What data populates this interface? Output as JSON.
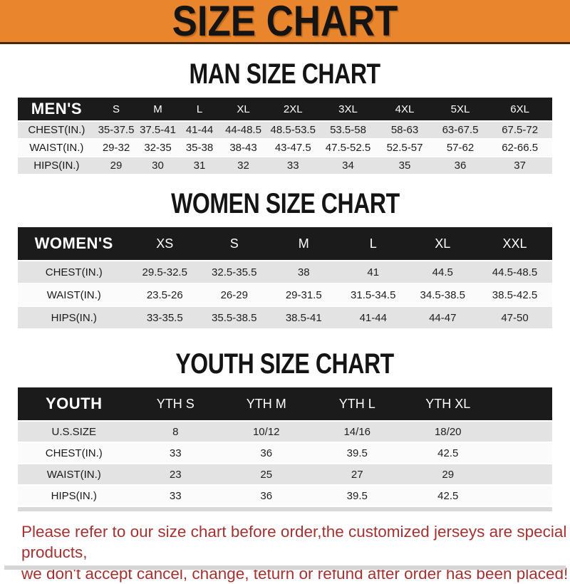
{
  "banner": {
    "title": "SIZE CHART"
  },
  "colors": {
    "banner_orange": "#E9852C",
    "banner_text": "#141414",
    "table_header_black": "#1B1B1B",
    "row_gray": "#E3E3E3",
    "row_white": "#FBFBFB",
    "footer_red": "#A53230"
  },
  "sections": [
    {
      "id": "men",
      "title": "MAN SIZE CHART",
      "table": {
        "header": [
          "MEN'S",
          "S",
          "M",
          "L",
          "XL",
          "2XL",
          "3XL",
          "4XL",
          "5XL",
          "6XL"
        ],
        "rows": [
          {
            "label": "CHEST(IN.)",
            "values": [
              "35-37.5",
              "37.5-41",
              "41-44",
              "44-48.5",
              "48.5-53.5",
              "53.5-58",
              "58-63",
              "63-67.5",
              "67.5-72"
            ]
          },
          {
            "label": "WAIST(IN.)",
            "values": [
              "29-32",
              "32-35",
              "35-38",
              "38-43",
              "43-47.5",
              "47.5-52.5",
              "52.5-57",
              "57-62",
              "62-66.5"
            ]
          },
          {
            "label": "HIPS(IN.)",
            "values": [
              "29",
              "30",
              "31",
              "32",
              "33",
              "34",
              "35",
              "36",
              "37"
            ]
          }
        ]
      }
    },
    {
      "id": "women",
      "title": "WOMEN SIZE CHART",
      "table": {
        "header": [
          "WOMEN'S",
          "XS",
          "S",
          "M",
          "L",
          "XL",
          "XXL"
        ],
        "rows": [
          {
            "label": "CHEST(IN.)",
            "values": [
              "29.5-32.5",
              "32.5-35.5",
              "38",
              "41",
              "44.5",
              "44.5-48.5"
            ]
          },
          {
            "label": "WAIST(IN.)",
            "values": [
              "23.5-26",
              "26-29",
              "29-31.5",
              "31.5-34.5",
              "34.5-38.5",
              "38.5-42.5"
            ]
          },
          {
            "label": "HIPS(IN.)",
            "values": [
              "33-35.5",
              "35.5-38.5",
              "38.5-41",
              "41-44",
              "44-47",
              "47-50"
            ]
          }
        ]
      }
    },
    {
      "id": "youth",
      "title": "YOUTH SIZE CHART",
      "table": {
        "header": [
          "YOUTH",
          "YTH S",
          "YTH M",
          "YTH L",
          "YTH XL"
        ],
        "rows": [
          {
            "label": "U.S.SIZE",
            "values": [
              "8",
              "10/12",
              "14/16",
              "18/20"
            ]
          },
          {
            "label": "CHEST(IN.)",
            "values": [
              "33",
              "36",
              "39.5",
              "42.5"
            ]
          },
          {
            "label": "WAIST(IN.)",
            "values": [
              "23",
              "25",
              "27",
              "29"
            ]
          },
          {
            "label": "HIPS(IN.)",
            "values": [
              "33",
              "36",
              "39.5",
              "42.5"
            ]
          }
        ]
      }
    }
  ],
  "footer": {
    "line1": "Please refer to our size chart before order,the customized jerseys are special products,",
    "line2": "we don't accept cancel, change, teturn or refund after order has been placed!"
  }
}
